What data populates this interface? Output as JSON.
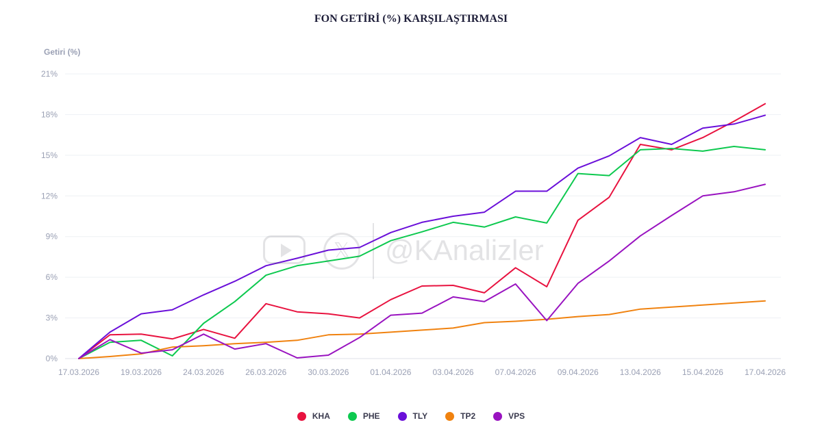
{
  "chart_data": {
    "type": "line",
    "title": "FON GETİRİ (%) KARŞILAŞTIRMASI",
    "ylabel": "Getiri (%)",
    "xlabel": "",
    "ylim": [
      0,
      21
    ],
    "yticks": [
      0,
      3,
      6,
      9,
      12,
      15,
      18,
      21
    ],
    "ytick_labels": [
      "0%",
      "3%",
      "6%",
      "9%",
      "12%",
      "15%",
      "18%",
      "21%"
    ],
    "x_tick_labels": [
      "17.03.2026",
      "19.03.2026",
      "24.03.2026",
      "26.03.2026",
      "30.03.2026",
      "01.04.2026",
      "03.04.2026",
      "07.04.2026",
      "09.04.2026",
      "13.04.2026",
      "15.04.2026",
      "17.04.2026"
    ],
    "x_tick_indices": [
      0,
      2,
      4,
      6,
      8,
      10,
      12,
      14,
      16,
      18,
      20,
      22
    ],
    "x": [
      "17.03.2026",
      "18.03.2026",
      "19.03.2026",
      "20.03.2026",
      "24.03.2026",
      "25.03.2026",
      "26.03.2026",
      "27.03.2026",
      "30.03.2026",
      "31.03.2026",
      "01.04.2026",
      "02.04.2026",
      "03.04.2026",
      "06.04.2026",
      "07.04.2026",
      "08.04.2026",
      "09.04.2026",
      "10.04.2026",
      "13.04.2026",
      "14.04.2026",
      "15.04.2026",
      "16.04.2026",
      "17.04.2026"
    ],
    "grid": true,
    "legend_position": "bottom-center",
    "series": [
      {
        "name": "KHA",
        "color": "#e8123f",
        "values": [
          0,
          1.75,
          1.8,
          1.45,
          2.15,
          1.5,
          4.05,
          3.45,
          3.3,
          3.0,
          4.35,
          5.35,
          5.4,
          4.85,
          6.7,
          5.3,
          10.2,
          11.9,
          15.8,
          15.4,
          16.3,
          17.5,
          18.8
        ]
      },
      {
        "name": "PHE",
        "color": "#0dc94f",
        "values": [
          0,
          1.2,
          1.35,
          0.2,
          2.6,
          4.2,
          6.15,
          6.85,
          7.2,
          7.55,
          8.7,
          9.35,
          10.05,
          9.7,
          10.45,
          10.0,
          13.65,
          13.5,
          15.4,
          15.5,
          15.3,
          15.65,
          15.4
        ]
      },
      {
        "name": "TLY",
        "color": "#6a0fd9",
        "values": [
          0,
          1.95,
          3.3,
          3.6,
          4.7,
          5.7,
          6.85,
          7.4,
          8.0,
          8.2,
          9.3,
          10.05,
          10.5,
          10.8,
          12.35,
          12.35,
          14.05,
          14.95,
          16.3,
          15.8,
          17.0,
          17.3,
          17.95
        ]
      },
      {
        "name": "TP2",
        "color": "#f0820f",
        "values": [
          0,
          0.15,
          0.35,
          0.85,
          0.95,
          1.1,
          1.2,
          1.35,
          1.75,
          1.8,
          1.95,
          2.1,
          2.25,
          2.65,
          2.75,
          2.9,
          3.1,
          3.25,
          3.65,
          3.8,
          3.95,
          4.1,
          4.25
        ]
      },
      {
        "name": "VPS",
        "color": "#9913c0",
        "values": [
          0,
          1.4,
          0.4,
          0.65,
          1.8,
          0.7,
          1.1,
          0.05,
          0.25,
          1.55,
          3.2,
          3.35,
          4.55,
          4.2,
          5.5,
          2.8,
          5.55,
          7.2,
          9.05,
          10.55,
          12.0,
          12.3,
          12.85
        ]
      }
    ]
  },
  "watermark": {
    "text": "@KAnalizler",
    "icons": [
      "youtube-icon",
      "x-logo-icon"
    ]
  }
}
